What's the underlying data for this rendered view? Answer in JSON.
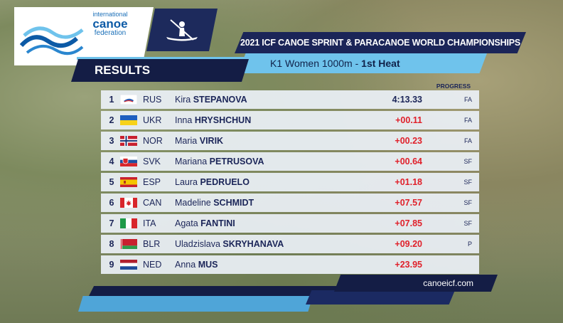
{
  "logo": {
    "line1": "international",
    "line2": "canoe",
    "line3": "federation"
  },
  "header": {
    "title": "2021 ICF CANOE SPRINT & PARACANOE WORLD CHAMPIONSHIPS",
    "event": "K1 Women 1000m",
    "heat": "1st Heat",
    "section": "RESULTS",
    "progress_label": "PROGRESS"
  },
  "results": [
    {
      "pos": "1",
      "code": "RUS",
      "first": "Kira",
      "last": "STEPANOVA",
      "time": "4:13.33",
      "progress": "FA",
      "flag": "RUS"
    },
    {
      "pos": "2",
      "code": "UKR",
      "first": "Inna",
      "last": "HRYSHCHUN",
      "time": "+00.11",
      "progress": "FA",
      "flag": "UKR"
    },
    {
      "pos": "3",
      "code": "NOR",
      "first": "Maria",
      "last": "VIRIK",
      "time": "+00.23",
      "progress": "FA",
      "flag": "NOR"
    },
    {
      "pos": "4",
      "code": "SVK",
      "first": "Mariana",
      "last": "PETRUSOVA",
      "time": "+00.64",
      "progress": "SF",
      "flag": "SVK"
    },
    {
      "pos": "5",
      "code": "ESP",
      "first": "Laura",
      "last": "PEDRUELO",
      "time": "+01.18",
      "progress": "SF",
      "flag": "ESP"
    },
    {
      "pos": "6",
      "code": "CAN",
      "first": "Madeline",
      "last": "SCHMIDT",
      "time": "+07.57",
      "progress": "SF",
      "flag": "CAN"
    },
    {
      "pos": "7",
      "code": "ITA",
      "first": "Agata",
      "last": "FANTINI",
      "time": "+07.85",
      "progress": "SF",
      "flag": "ITA"
    },
    {
      "pos": "8",
      "code": "BLR",
      "first": "Uladzislava",
      "last": "SKRYHANAVA",
      "time": "+09.20",
      "progress": "P",
      "flag": "BLR"
    },
    {
      "pos": "9",
      "code": "NED",
      "first": "Anna",
      "last": "MUS",
      "time": "+23.95",
      "progress": "",
      "flag": "NED"
    }
  ],
  "footer": {
    "site": "canoeicf.com"
  },
  "colors": {
    "navy": "#1b2558",
    "sky": "#6fc3ec",
    "gap_red": "#e0202a"
  }
}
